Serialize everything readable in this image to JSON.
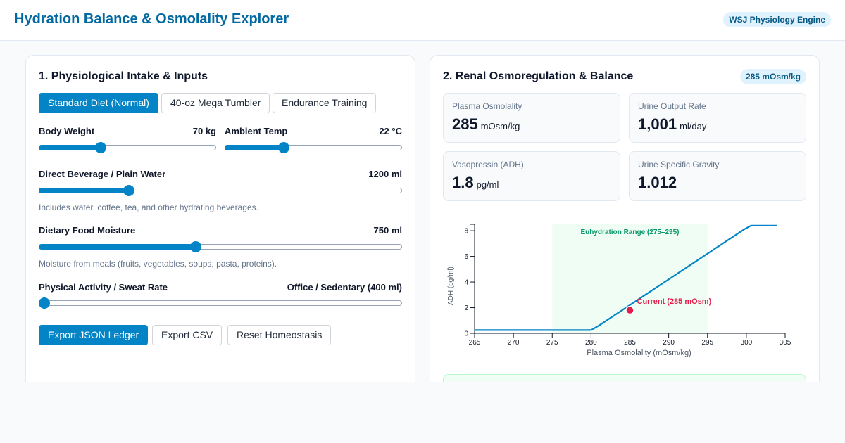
{
  "header": {
    "title": "Hydration Balance & Osmolality Explorer",
    "badge": "WSJ Physiology Engine"
  },
  "inputs_panel": {
    "title": "1. Physiological Intake & Inputs",
    "presets": [
      {
        "label": "Standard Diet (Normal)",
        "active": true
      },
      {
        "label": "40-oz Mega Tumbler",
        "active": false
      },
      {
        "label": "Endurance Training",
        "active": false
      }
    ],
    "body_weight": {
      "label": "Body Weight",
      "value": "70 kg",
      "level_pct": 34
    },
    "ambient_temp": {
      "label": "Ambient Temp",
      "value": "22 °C",
      "level_pct": 32
    },
    "beverage": {
      "label": "Direct Beverage / Plain Water",
      "value": "1200 ml",
      "level_pct": 24,
      "hint": "Includes water, coffee, tea, and other hydrating beverages."
    },
    "food_moisture": {
      "label": "Dietary Food Moisture",
      "value": "750 ml",
      "level_pct": 43,
      "hint": "Moisture from meals (fruits, vegetables, soups, pasta, proteins)."
    },
    "activity": {
      "label": "Physical Activity / Sweat Rate",
      "value": "Office / Sedentary (400 ml)",
      "level_pct": 0
    },
    "actions": {
      "export_json": "Export JSON Ledger",
      "export_csv": "Export CSV",
      "reset": "Reset Homeostasis"
    }
  },
  "renal_panel": {
    "title": "2. Renal Osmoregulation & Balance",
    "status_pill": "285 mOsm/kg",
    "metrics": {
      "plasma_osmolality": {
        "label": "Plasma Osmolality",
        "value": "285",
        "unit": "mOsm/kg"
      },
      "urine_output": {
        "label": "Urine Output Rate",
        "value": "1,001",
        "unit": "ml/day"
      },
      "vasopressin": {
        "label": "Vasopressin (ADH)",
        "value": "1.8",
        "unit": "pg/ml"
      },
      "specific_gravity": {
        "label": "Urine Specific Gravity",
        "value": "1.012",
        "unit": ""
      }
    }
  },
  "chart_data": {
    "type": "line",
    "xlabel": "Plasma Osmolality (mOsm/kg)",
    "ylabel": "ADH (pg/ml)",
    "xlim": [
      265,
      305
    ],
    "ylim": [
      0,
      8.5
    ],
    "x_ticks": [
      265,
      270,
      275,
      280,
      285,
      290,
      295,
      300,
      305
    ],
    "y_ticks": [
      0,
      2,
      4,
      6,
      8
    ],
    "series": [
      {
        "x": [
          265,
          280,
          281,
          299.7,
          300.6,
          304
        ],
        "y": [
          0.25,
          0.25,
          0.6,
          8.1,
          8.4,
          8.4
        ],
        "color": "#0284c7"
      }
    ],
    "band": {
      "x0": 275,
      "x1": 295,
      "label": "Euhydration Range (275–295)",
      "fill": "#f0fdf4",
      "text_color": "#059669"
    },
    "current_point": {
      "x": 285,
      "y": 1.8,
      "label": "Current (285 mOsm)",
      "color": "#e11d48"
    }
  }
}
